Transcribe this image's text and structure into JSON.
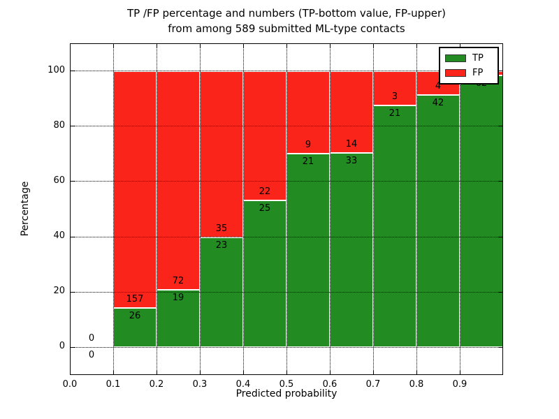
{
  "title": {
    "line1": "TP /FP percentage and numbers (TP-bottom value, FP-upper)",
    "line2": "from among 589 submitted ML-type contacts"
  },
  "chart_data": {
    "type": "bar",
    "stacked": true,
    "normalized": "percent",
    "title": "TP /FP percentage and numbers (TP-bottom value, FP-upper) from among 589 submitted ML-type contacts",
    "xlabel": "Predicted probability",
    "ylabel": "Percentage",
    "bin_edges": [
      0.0,
      0.1,
      0.2,
      0.3,
      0.4,
      0.5,
      0.6,
      0.7,
      0.8,
      0.9,
      1.0
    ],
    "categories": [
      "0.0-0.1",
      "0.1-0.2",
      "0.2-0.3",
      "0.3-0.4",
      "0.4-0.5",
      "0.5-0.6",
      "0.6-0.7",
      "0.7-0.8",
      "0.8-0.9",
      "0.9-1.0"
    ],
    "series": [
      {
        "name": "TP",
        "color": "#228b22",
        "counts": [
          0,
          26,
          19,
          23,
          25,
          21,
          33,
          21,
          42,
          62
        ]
      },
      {
        "name": "FP",
        "color": "#fb241b",
        "counts": [
          0,
          157,
          72,
          35,
          22,
          9,
          14,
          3,
          4,
          1
        ]
      }
    ],
    "bar_labels": {
      "tp": [
        "0",
        "26",
        "19",
        "23",
        "25",
        "21",
        "33",
        "21",
        "42",
        "62"
      ],
      "fp": [
        "0",
        "157",
        "72",
        "35",
        "22",
        "9",
        "14",
        "3",
        "4",
        ""
      ]
    },
    "x_ticks": [
      "0.0",
      "0.1",
      "0.2",
      "0.3",
      "0.4",
      "0.5",
      "0.6",
      "0.7",
      "0.8",
      "0.9"
    ],
    "x_tick_values": [
      0.0,
      0.1,
      0.2,
      0.3,
      0.4,
      0.5,
      0.6,
      0.7,
      0.8,
      0.9
    ],
    "y_ticks": [
      "0",
      "20",
      "40",
      "60",
      "80",
      "100"
    ],
    "y_tick_values": [
      0,
      20,
      40,
      60,
      80,
      100
    ],
    "xlim": [
      0,
      1
    ],
    "ylim": [
      -10,
      110
    ],
    "grid": "dotted",
    "legend": [
      "TP",
      "FP"
    ],
    "legend_position": "upper right",
    "colors": {
      "tp_green": "#228b22",
      "fp_red": "#fb241b",
      "grid": "#000000",
      "background": "#ffffff"
    }
  }
}
